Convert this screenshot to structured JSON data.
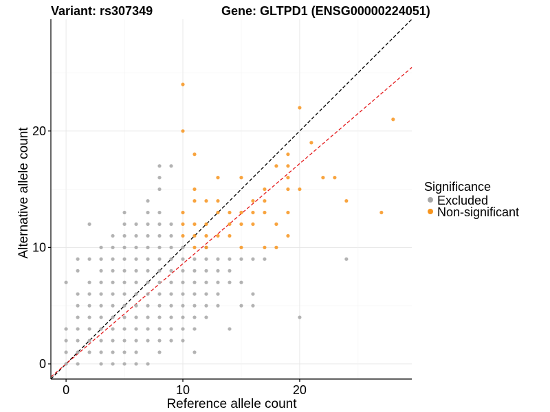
{
  "chart_data": {
    "type": "scatter",
    "title_left": "Variant: rs307349",
    "title_right": "Gene: GLTPD1 (ENSG00000224051)",
    "xlabel": "Reference allele count",
    "ylabel": "Alternative allele count",
    "xlim": [
      -1.3,
      29.6
    ],
    "ylim": [
      -1.3,
      29.6
    ],
    "x_ticks": [
      0,
      10,
      20
    ],
    "y_ticks": [
      0,
      10,
      20
    ],
    "grid": true,
    "legend": {
      "title": "Significance",
      "position": "right",
      "entries": [
        {
          "name": "Excluded",
          "color": "#a6a6a6"
        },
        {
          "name": "Non-significant",
          "color": "#f7941d"
        }
      ]
    },
    "reference_lines": [
      {
        "kind": "identity",
        "slope": 1,
        "intercept": 0,
        "color": "#000000",
        "dash": "dashed"
      },
      {
        "kind": "fit",
        "slope": 0.86,
        "intercept": 0,
        "color": "#e41a1c",
        "dash": "dashed"
      }
    ],
    "series": [
      {
        "name": "Excluded",
        "color": "#a6a6a6",
        "points": [
          [
            0,
            0
          ],
          [
            0,
            1
          ],
          [
            0,
            2
          ],
          [
            0,
            3
          ],
          [
            0,
            7
          ],
          [
            1,
            0
          ],
          [
            1,
            1
          ],
          [
            1,
            2
          ],
          [
            1,
            3
          ],
          [
            1,
            4
          ],
          [
            1,
            5
          ],
          [
            1,
            6
          ],
          [
            1,
            8
          ],
          [
            1,
            9
          ],
          [
            2,
            1
          ],
          [
            2,
            2
          ],
          [
            2,
            3
          ],
          [
            2,
            4
          ],
          [
            2,
            5
          ],
          [
            2,
            6
          ],
          [
            2,
            7
          ],
          [
            2,
            9
          ],
          [
            2,
            12
          ],
          [
            3,
            0
          ],
          [
            3,
            1
          ],
          [
            3,
            2
          ],
          [
            3,
            3
          ],
          [
            3,
            4
          ],
          [
            3,
            5
          ],
          [
            3,
            6
          ],
          [
            3,
            7
          ],
          [
            3,
            8
          ],
          [
            3,
            9
          ],
          [
            3,
            10
          ],
          [
            4,
            0
          ],
          [
            4,
            1
          ],
          [
            4,
            2
          ],
          [
            4,
            3
          ],
          [
            4,
            4
          ],
          [
            4,
            5
          ],
          [
            4,
            6
          ],
          [
            4,
            7
          ],
          [
            4,
            8
          ],
          [
            4,
            9
          ],
          [
            4,
            10
          ],
          [
            4,
            11
          ],
          [
            5,
            0
          ],
          [
            5,
            1
          ],
          [
            5,
            2
          ],
          [
            5,
            3
          ],
          [
            5,
            4
          ],
          [
            5,
            5
          ],
          [
            5,
            6
          ],
          [
            5,
            7
          ],
          [
            5,
            8
          ],
          [
            5,
            9
          ],
          [
            5,
            10
          ],
          [
            5,
            11
          ],
          [
            5,
            12
          ],
          [
            5,
            13
          ],
          [
            6,
            0
          ],
          [
            6,
            1
          ],
          [
            6,
            2
          ],
          [
            6,
            3
          ],
          [
            6,
            4
          ],
          [
            6,
            5
          ],
          [
            6,
            6
          ],
          [
            6,
            7
          ],
          [
            6,
            8
          ],
          [
            6,
            9
          ],
          [
            6,
            10
          ],
          [
            6,
            11
          ],
          [
            6,
            12
          ],
          [
            7,
            0
          ],
          [
            7,
            2
          ],
          [
            7,
            3
          ],
          [
            7,
            4
          ],
          [
            7,
            5
          ],
          [
            7,
            6
          ],
          [
            7,
            7
          ],
          [
            7,
            8
          ],
          [
            7,
            9
          ],
          [
            7,
            10
          ],
          [
            7,
            11
          ],
          [
            7,
            12
          ],
          [
            7,
            13
          ],
          [
            7,
            14
          ],
          [
            8,
            1
          ],
          [
            8,
            2
          ],
          [
            8,
            3
          ],
          [
            8,
            4
          ],
          [
            8,
            5
          ],
          [
            8,
            6
          ],
          [
            8,
            7
          ],
          [
            8,
            8
          ],
          [
            8,
            9
          ],
          [
            8,
            10
          ],
          [
            8,
            11
          ],
          [
            8,
            12
          ],
          [
            8,
            13
          ],
          [
            8,
            15
          ],
          [
            8,
            16
          ],
          [
            8,
            17
          ],
          [
            9,
            2
          ],
          [
            9,
            3
          ],
          [
            9,
            4
          ],
          [
            9,
            5
          ],
          [
            9,
            6
          ],
          [
            9,
            7
          ],
          [
            9,
            8
          ],
          [
            9,
            9
          ],
          [
            9,
            10
          ],
          [
            9,
            11
          ],
          [
            9,
            12
          ],
          [
            9,
            17
          ],
          [
            10,
            2
          ],
          [
            10,
            3
          ],
          [
            10,
            4
          ],
          [
            10,
            5
          ],
          [
            10,
            6
          ],
          [
            10,
            7
          ],
          [
            10,
            8
          ],
          [
            10,
            9
          ],
          [
            10,
            10
          ],
          [
            11,
            1
          ],
          [
            11,
            3
          ],
          [
            11,
            4
          ],
          [
            11,
            5
          ],
          [
            11,
            6
          ],
          [
            11,
            7
          ],
          [
            11,
            8
          ],
          [
            11,
            9
          ],
          [
            12,
            4
          ],
          [
            12,
            5
          ],
          [
            12,
            6
          ],
          [
            12,
            7
          ],
          [
            12,
            8
          ],
          [
            12,
            9
          ],
          [
            12,
            10
          ],
          [
            13,
            5
          ],
          [
            13,
            6
          ],
          [
            13,
            7
          ],
          [
            13,
            8
          ],
          [
            13,
            9
          ],
          [
            14,
            3
          ],
          [
            14,
            7
          ],
          [
            14,
            8
          ],
          [
            14,
            9
          ],
          [
            15,
            5
          ],
          [
            15,
            7
          ],
          [
            15,
            9
          ],
          [
            16,
            5
          ],
          [
            16,
            6
          ],
          [
            16,
            9
          ],
          [
            17,
            9
          ],
          [
            20,
            4
          ],
          [
            24,
            9
          ]
        ]
      },
      {
        "name": "Non-significant",
        "color": "#f7941d",
        "points": [
          [
            10,
            24
          ],
          [
            10,
            20
          ],
          [
            10,
            13
          ],
          [
            10,
            12
          ],
          [
            10,
            11
          ],
          [
            11,
            18
          ],
          [
            11,
            15
          ],
          [
            11,
            14
          ],
          [
            11,
            12
          ],
          [
            11,
            11
          ],
          [
            11,
            10
          ],
          [
            12,
            14
          ],
          [
            12,
            12
          ],
          [
            12,
            11
          ],
          [
            12,
            10
          ],
          [
            13,
            16
          ],
          [
            13,
            14
          ],
          [
            13,
            13
          ],
          [
            13,
            11
          ],
          [
            14,
            13
          ],
          [
            14,
            12
          ],
          [
            14,
            11
          ],
          [
            15,
            16
          ],
          [
            15,
            13
          ],
          [
            15,
            12
          ],
          [
            15,
            10
          ],
          [
            16,
            14
          ],
          [
            16,
            13
          ],
          [
            16,
            12
          ],
          [
            17,
            15
          ],
          [
            17,
            14
          ],
          [
            17,
            13
          ],
          [
            17,
            10
          ],
          [
            18,
            17
          ],
          [
            18,
            12
          ],
          [
            18,
            10
          ],
          [
            19,
            18
          ],
          [
            19,
            17
          ],
          [
            19,
            16
          ],
          [
            19,
            15
          ],
          [
            19,
            13
          ],
          [
            19,
            11
          ],
          [
            20,
            22
          ],
          [
            20,
            15
          ],
          [
            21,
            19
          ],
          [
            22,
            16
          ],
          [
            23,
            16
          ],
          [
            24,
            14
          ],
          [
            27,
            13
          ],
          [
            28,
            21
          ]
        ]
      }
    ]
  }
}
